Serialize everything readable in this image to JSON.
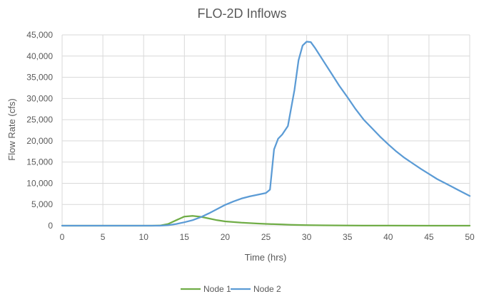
{
  "chart_data": {
    "type": "line",
    "title": "FLO-2D Inflows",
    "xlabel": "Time (hrs)",
    "ylabel": "Flow Rate (cfs)",
    "xlim": [
      0,
      50
    ],
    "ylim": [
      0,
      45000
    ],
    "x_ticks": [
      0,
      5,
      10,
      15,
      20,
      25,
      30,
      35,
      40,
      45,
      50
    ],
    "y_ticks": [
      0,
      5000,
      10000,
      15000,
      20000,
      25000,
      30000,
      35000,
      40000,
      45000
    ],
    "x_tick_labels": [
      "0",
      "5",
      "10",
      "15",
      "20",
      "25",
      "30",
      "35",
      "40",
      "45",
      "50"
    ],
    "y_tick_labels": [
      "0",
      "5,000",
      "10,000",
      "15,000",
      "20,000",
      "25,000",
      "30,000",
      "35,000",
      "40,000",
      "45,000"
    ],
    "grid": true,
    "legend_position": "bottom",
    "series": [
      {
        "name": "Node 1",
        "color": "#70ad47",
        "points": [
          [
            0,
            0
          ],
          [
            11,
            0
          ],
          [
            12,
            30
          ],
          [
            13,
            400
          ],
          [
            14,
            1300
          ],
          [
            15,
            2150
          ],
          [
            16,
            2300
          ],
          [
            17,
            2100
          ],
          [
            18,
            1700
          ],
          [
            19,
            1300
          ],
          [
            20,
            1000
          ],
          [
            21,
            850
          ],
          [
            22,
            700
          ],
          [
            23,
            600
          ],
          [
            24,
            500
          ],
          [
            25,
            420
          ],
          [
            26,
            350
          ],
          [
            27,
            280
          ],
          [
            28,
            220
          ],
          [
            29,
            170
          ],
          [
            30,
            120
          ],
          [
            32,
            80
          ],
          [
            35,
            40
          ],
          [
            40,
            15
          ],
          [
            45,
            5
          ],
          [
            50,
            0
          ]
        ]
      },
      {
        "name": "Node 2",
        "color": "#5b9bd5",
        "points": [
          [
            0,
            0
          ],
          [
            12,
            0
          ],
          [
            13,
            100
          ],
          [
            14,
            400
          ],
          [
            15,
            800
          ],
          [
            16,
            1300
          ],
          [
            17,
            2000
          ],
          [
            18,
            2900
          ],
          [
            19,
            3900
          ],
          [
            20,
            4900
          ],
          [
            21,
            5700
          ],
          [
            22,
            6400
          ],
          [
            23,
            6900
          ],
          [
            24,
            7300
          ],
          [
            25,
            7700
          ],
          [
            25.5,
            8500
          ],
          [
            26,
            18000
          ],
          [
            26.5,
            20500
          ],
          [
            27,
            21500
          ],
          [
            27.7,
            23500
          ],
          [
            28.5,
            32000
          ],
          [
            29,
            39000
          ],
          [
            29.5,
            42500
          ],
          [
            30,
            43400
          ],
          [
            30.5,
            43300
          ],
          [
            31,
            42000
          ],
          [
            32,
            39000
          ],
          [
            33,
            36000
          ],
          [
            34,
            33000
          ],
          [
            35,
            30300
          ],
          [
            36,
            27500
          ],
          [
            37,
            25000
          ],
          [
            38,
            23000
          ],
          [
            39,
            21000
          ],
          [
            40,
            19200
          ],
          [
            41,
            17500
          ],
          [
            42,
            16000
          ],
          [
            43,
            14700
          ],
          [
            44,
            13400
          ],
          [
            45,
            12200
          ],
          [
            46,
            11000
          ],
          [
            47,
            10000
          ],
          [
            48,
            9000
          ],
          [
            49,
            8000
          ],
          [
            50,
            7000
          ]
        ]
      }
    ]
  }
}
